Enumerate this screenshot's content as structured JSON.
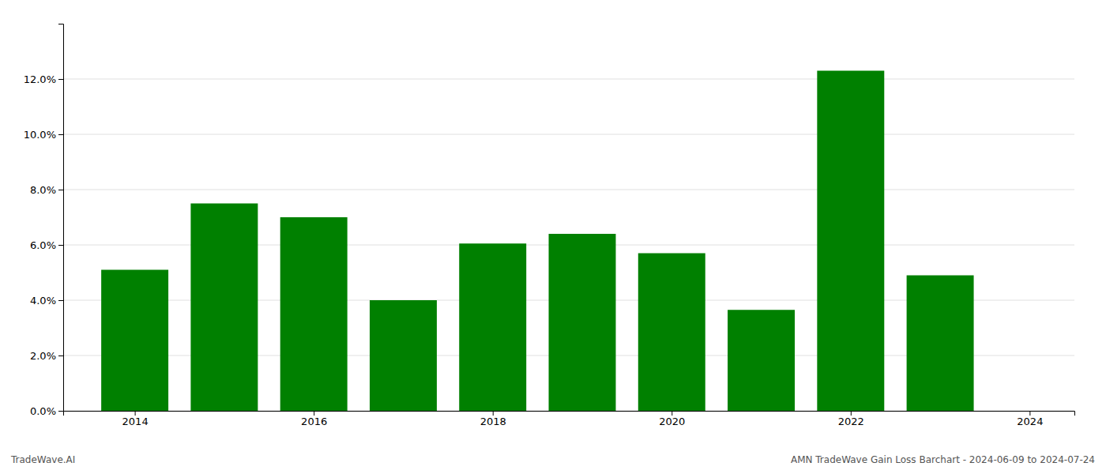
{
  "chart_data": {
    "type": "bar",
    "x": [
      2014,
      2015,
      2016,
      2017,
      2018,
      2019,
      2020,
      2021,
      2022,
      2023
    ],
    "values": [
      0.051,
      0.075,
      0.07,
      0.04,
      0.0605,
      0.064,
      0.057,
      0.0365,
      0.123,
      0.049
    ],
    "color": "#008000",
    "xlim": [
      2013.2,
      2024.5
    ],
    "xticks": [
      2014,
      2016,
      2018,
      2020,
      2022,
      2024
    ],
    "ylim": [
      0,
      0.14
    ],
    "yticks": [
      {
        "value": 0.0,
        "label": "0.0%"
      },
      {
        "value": 0.02,
        "label": "2.0%"
      },
      {
        "value": 0.04,
        "label": "4.0%"
      },
      {
        "value": 0.06,
        "label": "6.0%"
      },
      {
        "value": 0.08,
        "label": "8.0%"
      },
      {
        "value": 0.1,
        "label": "10.0%"
      },
      {
        "value": 0.12,
        "label": "12.0%"
      }
    ],
    "grid": true,
    "annotations": [
      "TradeWave.AI",
      "AMN TradeWave Gain Loss Barchart - 2024-06-09 to 2024-07-24"
    ]
  }
}
